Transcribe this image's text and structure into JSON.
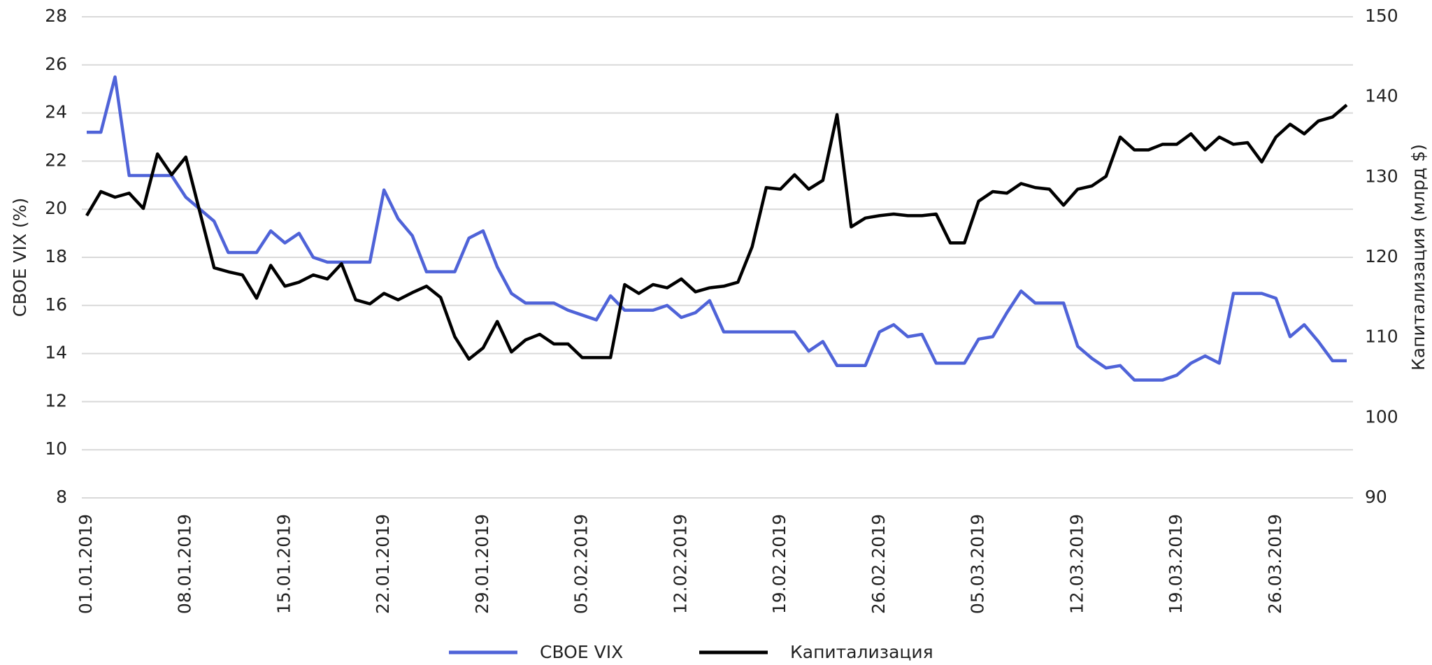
{
  "chart_data": {
    "type": "line",
    "categories": [
      "01.01.2019",
      null,
      null,
      null,
      null,
      null,
      null,
      "08.01.2019",
      null,
      null,
      null,
      null,
      null,
      null,
      "15.01.2019",
      null,
      null,
      null,
      null,
      null,
      null,
      "22.01.2019",
      null,
      null,
      null,
      null,
      null,
      null,
      "29.01.2019",
      null,
      null,
      null,
      null,
      null,
      null,
      "05.02.2019",
      null,
      null,
      null,
      null,
      null,
      null,
      "12.02.2019",
      null,
      null,
      null,
      null,
      null,
      null,
      "19.02.2019",
      null,
      null,
      null,
      null,
      null,
      null,
      "26.02.2019",
      null,
      null,
      null,
      null,
      null,
      null,
      "05.03.2019",
      null,
      null,
      null,
      null,
      null,
      null,
      "12.03.2019",
      null,
      null,
      null,
      null,
      null,
      null,
      "19.03.2019",
      null,
      null,
      null,
      null,
      null,
      null,
      "26.03.2019",
      null,
      null,
      null,
      null,
      null
    ],
    "series": [
      {
        "name": "CBOE VIX",
        "color": "#4f63d8",
        "axis": "y",
        "values": [
          23.2,
          23.2,
          25.5,
          21.4,
          21.4,
          21.4,
          21.4,
          20.5,
          20.0,
          19.5,
          18.2,
          18.2,
          18.2,
          19.1,
          18.6,
          19.0,
          18.0,
          17.8,
          17.8,
          17.8,
          17.8,
          20.8,
          19.6,
          18.9,
          17.4,
          17.4,
          17.4,
          18.8,
          19.1,
          17.6,
          16.5,
          16.1,
          16.1,
          16.1,
          15.8,
          15.6,
          15.4,
          16.4,
          15.8,
          15.8,
          15.8,
          16.0,
          15.5,
          15.7,
          16.2,
          14.9,
          14.9,
          14.9,
          14.9,
          14.9,
          14.9,
          14.1,
          14.5,
          13.5,
          13.5,
          13.5,
          14.9,
          15.2,
          14.7,
          14.8,
          13.6,
          13.6,
          13.6,
          14.6,
          14.7,
          15.7,
          16.6,
          16.1,
          16.1,
          16.1,
          14.3,
          13.8,
          13.4,
          13.5,
          12.9,
          12.9,
          12.9,
          13.1,
          13.6,
          13.9,
          13.6,
          16.5,
          16.5,
          16.5,
          16.3,
          14.7,
          15.2,
          14.5,
          13.7,
          13.7
        ]
      },
      {
        "name": "Капитализация",
        "color": "#000000",
        "axis": "y2",
        "values": [
          125.2,
          128.2,
          127.5,
          128.0,
          126.1,
          132.9,
          130.3,
          132.5,
          125.6,
          118.7,
          118.2,
          117.8,
          114.9,
          119.0,
          116.4,
          116.9,
          117.8,
          117.3,
          119.2,
          114.7,
          114.2,
          115.5,
          114.7,
          115.6,
          116.4,
          115.0,
          110.1,
          107.3,
          108.7,
          112.0,
          108.2,
          109.7,
          110.4,
          109.2,
          109.2,
          107.5,
          107.5,
          107.5,
          116.6,
          115.5,
          116.6,
          116.2,
          117.3,
          115.7,
          116.2,
          116.4,
          116.9,
          121.3,
          128.7,
          128.5,
          130.3,
          128.5,
          129.6,
          137.8,
          123.8,
          124.9,
          125.2,
          125.4,
          125.2,
          125.2,
          125.4,
          121.8,
          121.8,
          127.0,
          128.2,
          128.0,
          129.2,
          128.7,
          128.5,
          126.5,
          128.5,
          128.9,
          130.1,
          135.0,
          133.4,
          133.4,
          134.1,
          134.1,
          135.4,
          133.4,
          135.0,
          134.1,
          134.3,
          131.9,
          135.0,
          136.6,
          135.4,
          137.0,
          137.5,
          139.0
        ]
      }
    ],
    "ylabel": "CBOE VIX (%)",
    "y2label": "Капитализация (млрд $)",
    "ylim": [
      8,
      28
    ],
    "yticks": [
      8,
      10,
      12,
      14,
      16,
      18,
      20,
      22,
      24,
      26,
      28
    ],
    "y2lim": [
      90,
      150
    ],
    "y2ticks": [
      90,
      100,
      110,
      120,
      130,
      140,
      150
    ],
    "grid": true,
    "legend": "bottom"
  }
}
